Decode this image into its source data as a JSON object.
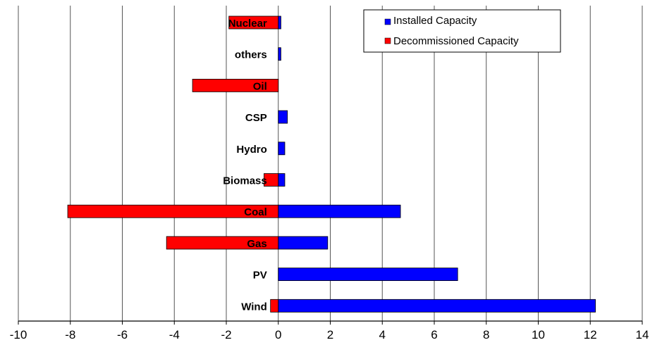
{
  "chart_data": {
    "type": "bar",
    "orientation": "horizontal",
    "categories": [
      "Nuclear",
      "others",
      "Oil",
      "CSP",
      "Hydro",
      "Biomass",
      "Coal",
      "Gas",
      "PV",
      "Wind"
    ],
    "series": [
      {
        "name": "Installed Capacity",
        "color": "#0000ff",
        "values": [
          0.1,
          0.1,
          0,
          0.35,
          0.25,
          0.25,
          4.7,
          1.9,
          6.9,
          12.2
        ]
      },
      {
        "name": "Decommissioned Capacity",
        "color": "#ff0000",
        "values": [
          -1.9,
          0,
          -3.3,
          0,
          0,
          -0.55,
          -8.1,
          -4.3,
          0,
          -0.3
        ]
      }
    ],
    "title": "",
    "xlabel": "",
    "ylabel": "",
    "xlim": [
      -10,
      14
    ],
    "x_ticks": [
      -10,
      -8,
      -6,
      -4,
      -2,
      0,
      2,
      4,
      6,
      8,
      10,
      12,
      14
    ],
    "grid": "vertical",
    "legend": "top-right"
  }
}
